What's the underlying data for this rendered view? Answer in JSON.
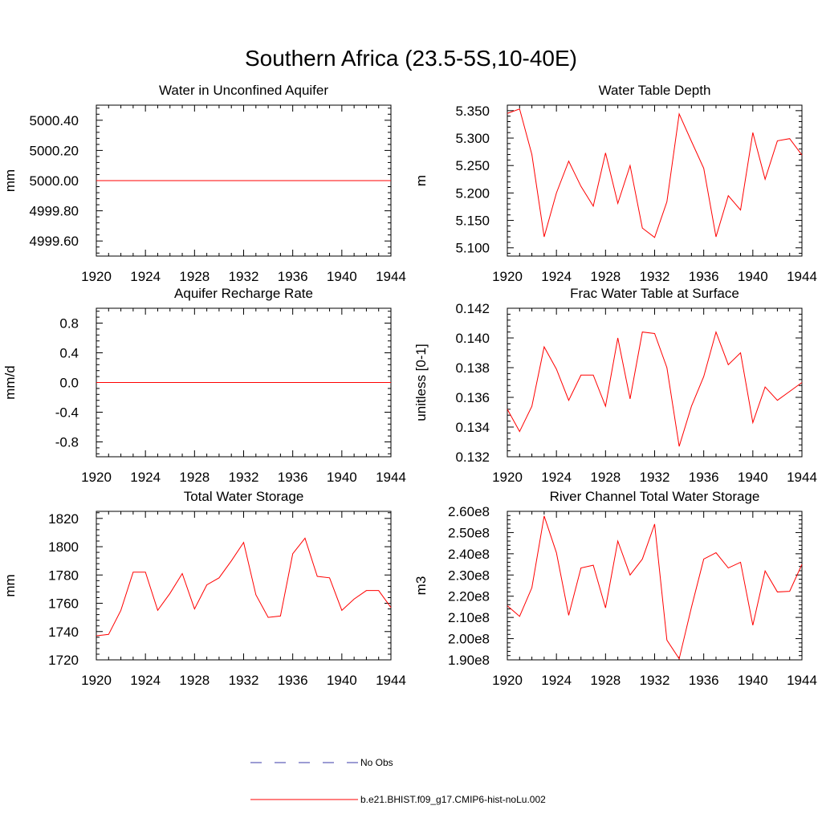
{
  "figure": {
    "title": "Southern Africa (23.5-5S,10-40E)"
  },
  "colors": {
    "model_line": "#ff0000",
    "obs_line": "#3a3aa8",
    "axis": "#000000"
  },
  "legend": {
    "placement": "bottom-center",
    "entries": [
      {
        "label": "No Obs",
        "style": "dashed"
      },
      {
        "label": "b.e21.BHIST.f09_g17.CMIP6-hist-noLu.002",
        "style": "solid"
      }
    ]
  },
  "chart_data": [
    {
      "type": "line",
      "title": "Water in Unconfined Aquifer",
      "ylabel": "mm",
      "xlim": [
        1920,
        1944
      ],
      "ylim": [
        4999.5,
        5000.5
      ],
      "xticks": [
        1920,
        1924,
        1928,
        1932,
        1936,
        1940,
        1944
      ],
      "yticks": [
        4999.6,
        4999.8,
        5000.0,
        5000.2,
        5000.4
      ],
      "ytick_labels": [
        "4999.60",
        "4999.80",
        "5000.00",
        "5000.20",
        "5000.40"
      ],
      "x": [
        1920,
        1921,
        1922,
        1923,
        1924,
        1925,
        1926,
        1927,
        1928,
        1929,
        1930,
        1931,
        1932,
        1933,
        1934,
        1935,
        1936,
        1937,
        1938,
        1939,
        1940,
        1941,
        1942,
        1943,
        1944
      ],
      "series": [
        {
          "name": "b.e21.BHIST.f09_g17.CMIP6-hist-noLu.002",
          "values": [
            5000,
            5000,
            5000,
            5000,
            5000,
            5000,
            5000,
            5000,
            5000,
            5000,
            5000,
            5000,
            5000,
            5000,
            5000,
            5000,
            5000,
            5000,
            5000,
            5000,
            5000,
            5000,
            5000,
            5000,
            5000
          ]
        }
      ]
    },
    {
      "type": "line",
      "title": "Water Table Depth",
      "ylabel": "m",
      "xlim": [
        1920,
        1944
      ],
      "ylim": [
        5.085,
        5.36
      ],
      "xticks": [
        1920,
        1924,
        1928,
        1932,
        1936,
        1940,
        1944
      ],
      "yticks": [
        5.1,
        5.15,
        5.2,
        5.25,
        5.3,
        5.35
      ],
      "ytick_labels": [
        "5.100",
        "5.150",
        "5.200",
        "5.250",
        "5.300",
        "5.350"
      ],
      "x": [
        1920,
        1921,
        1922,
        1923,
        1924,
        1925,
        1926,
        1927,
        1928,
        1929,
        1930,
        1931,
        1932,
        1933,
        1934,
        1935,
        1936,
        1937,
        1938,
        1939,
        1940,
        1941,
        1942,
        1943,
        1944
      ],
      "series": [
        {
          "name": "b.e21.BHIST.f09_g17.CMIP6-hist-noLu.002",
          "values": [
            5.345,
            5.353,
            5.27,
            5.12,
            5.2,
            5.258,
            5.212,
            5.176,
            5.273,
            5.181,
            5.25,
            5.136,
            5.119,
            5.184,
            5.344,
            5.294,
            5.245,
            5.12,
            5.195,
            5.169,
            5.31,
            5.225,
            5.295,
            5.299,
            5.269
          ]
        }
      ]
    },
    {
      "type": "line",
      "title": "Aquifer Recharge Rate",
      "ylabel": "mm/d",
      "xlim": [
        1920,
        1944
      ],
      "ylim": [
        -1.0,
        1.0
      ],
      "xticks": [
        1920,
        1924,
        1928,
        1932,
        1936,
        1940,
        1944
      ],
      "yticks": [
        -0.8,
        -0.4,
        0.0,
        0.4,
        0.8
      ],
      "ytick_labels": [
        "-0.8",
        "-0.4",
        "0.0",
        "0.4",
        "0.8"
      ],
      "x": [
        1920,
        1921,
        1922,
        1923,
        1924,
        1925,
        1926,
        1927,
        1928,
        1929,
        1930,
        1931,
        1932,
        1933,
        1934,
        1935,
        1936,
        1937,
        1938,
        1939,
        1940,
        1941,
        1942,
        1943,
        1944
      ],
      "series": [
        {
          "name": "b.e21.BHIST.f09_g17.CMIP6-hist-noLu.002",
          "values": [
            0,
            0,
            0,
            0,
            0,
            0,
            0,
            0,
            0,
            0,
            0,
            0,
            0,
            0,
            0,
            0,
            0,
            0,
            0,
            0,
            0,
            0,
            0,
            0,
            0
          ]
        }
      ]
    },
    {
      "type": "line",
      "title": "Frac Water Table at Surface",
      "ylabel": "unitless [0-1]",
      "xlim": [
        1920,
        1944
      ],
      "ylim": [
        0.132,
        0.142
      ],
      "xticks": [
        1920,
        1924,
        1928,
        1932,
        1936,
        1940,
        1944
      ],
      "yticks": [
        0.132,
        0.134,
        0.136,
        0.138,
        0.14,
        0.142
      ],
      "ytick_labels": [
        "0.132",
        "0.134",
        "0.136",
        "0.138",
        "0.140",
        "0.142"
      ],
      "x": [
        1920,
        1921,
        1922,
        1923,
        1924,
        1925,
        1926,
        1927,
        1928,
        1929,
        1930,
        1931,
        1932,
        1933,
        1934,
        1935,
        1936,
        1937,
        1938,
        1939,
        1940,
        1941,
        1942,
        1943,
        1944
      ],
      "series": [
        {
          "name": "b.e21.BHIST.f09_g17.CMIP6-hist-noLu.002",
          "values": [
            0.1352,
            0.1337,
            0.1354,
            0.1394,
            0.1379,
            0.1358,
            0.1375,
            0.1375,
            0.1354,
            0.14,
            0.1359,
            0.1404,
            0.1403,
            0.138,
            0.1327,
            0.1354,
            0.1374,
            0.1404,
            0.1382,
            0.139,
            0.1343,
            0.1367,
            0.1358,
            0.1364,
            0.137
          ]
        }
      ]
    },
    {
      "type": "line",
      "title": "Total Water Storage",
      "ylabel": "mm",
      "xlim": [
        1920,
        1944
      ],
      "ylim": [
        1720,
        1825
      ],
      "xticks": [
        1920,
        1924,
        1928,
        1932,
        1936,
        1940,
        1944
      ],
      "yticks": [
        1720,
        1740,
        1760,
        1780,
        1800,
        1820
      ],
      "ytick_labels": [
        "1720",
        "1740",
        "1760",
        "1780",
        "1800",
        "1820"
      ],
      "x": [
        1920,
        1921,
        1922,
        1923,
        1924,
        1925,
        1926,
        1927,
        1928,
        1929,
        1930,
        1931,
        1932,
        1933,
        1934,
        1935,
        1936,
        1937,
        1938,
        1939,
        1940,
        1941,
        1942,
        1943,
        1944
      ],
      "series": [
        {
          "name": "b.e21.BHIST.f09_g17.CMIP6-hist-noLu.002",
          "values": [
            1737,
            1738,
            1755,
            1782,
            1782,
            1755,
            1767,
            1781,
            1756,
            1773,
            1778,
            1790,
            1803,
            1766,
            1750,
            1751,
            1795,
            1806,
            1779,
            1778,
            1755,
            1763,
            1769,
            1769,
            1757
          ]
        }
      ]
    },
    {
      "type": "line",
      "title": "River Channel Total Water Storage",
      "ylabel": "m3",
      "xlim": [
        1920,
        1944
      ],
      "ylim": [
        190000000,
        260000000
      ],
      "xticks": [
        1920,
        1924,
        1928,
        1932,
        1936,
        1940,
        1944
      ],
      "yticks": [
        190000000,
        200000000,
        210000000,
        220000000,
        230000000,
        240000000,
        250000000,
        260000000
      ],
      "ytick_labels": [
        "1.90e8",
        "2.00e8",
        "2.10e8",
        "2.20e8",
        "2.30e8",
        "2.40e8",
        "2.50e8",
        "2.60e8"
      ],
      "x": [
        1920,
        1921,
        1922,
        1923,
        1924,
        1925,
        1926,
        1927,
        1928,
        1929,
        1930,
        1931,
        1932,
        1933,
        1934,
        1935,
        1936,
        1937,
        1938,
        1939,
        1940,
        1941,
        1942,
        1943,
        1944
      ],
      "series": [
        {
          "name": "b.e21.BHIST.f09_g17.CMIP6-hist-noLu.002",
          "values": [
            215500000,
            210500000,
            224000000,
            257800000,
            240500000,
            211000000,
            233300000,
            234600000,
            214500000,
            246000000,
            230000000,
            237500000,
            254000000,
            199300000,
            190500000,
            214800000,
            237500000,
            240500000,
            233300000,
            236000000,
            206300000,
            231900000,
            222000000,
            222300000,
            235000000
          ]
        }
      ]
    }
  ]
}
